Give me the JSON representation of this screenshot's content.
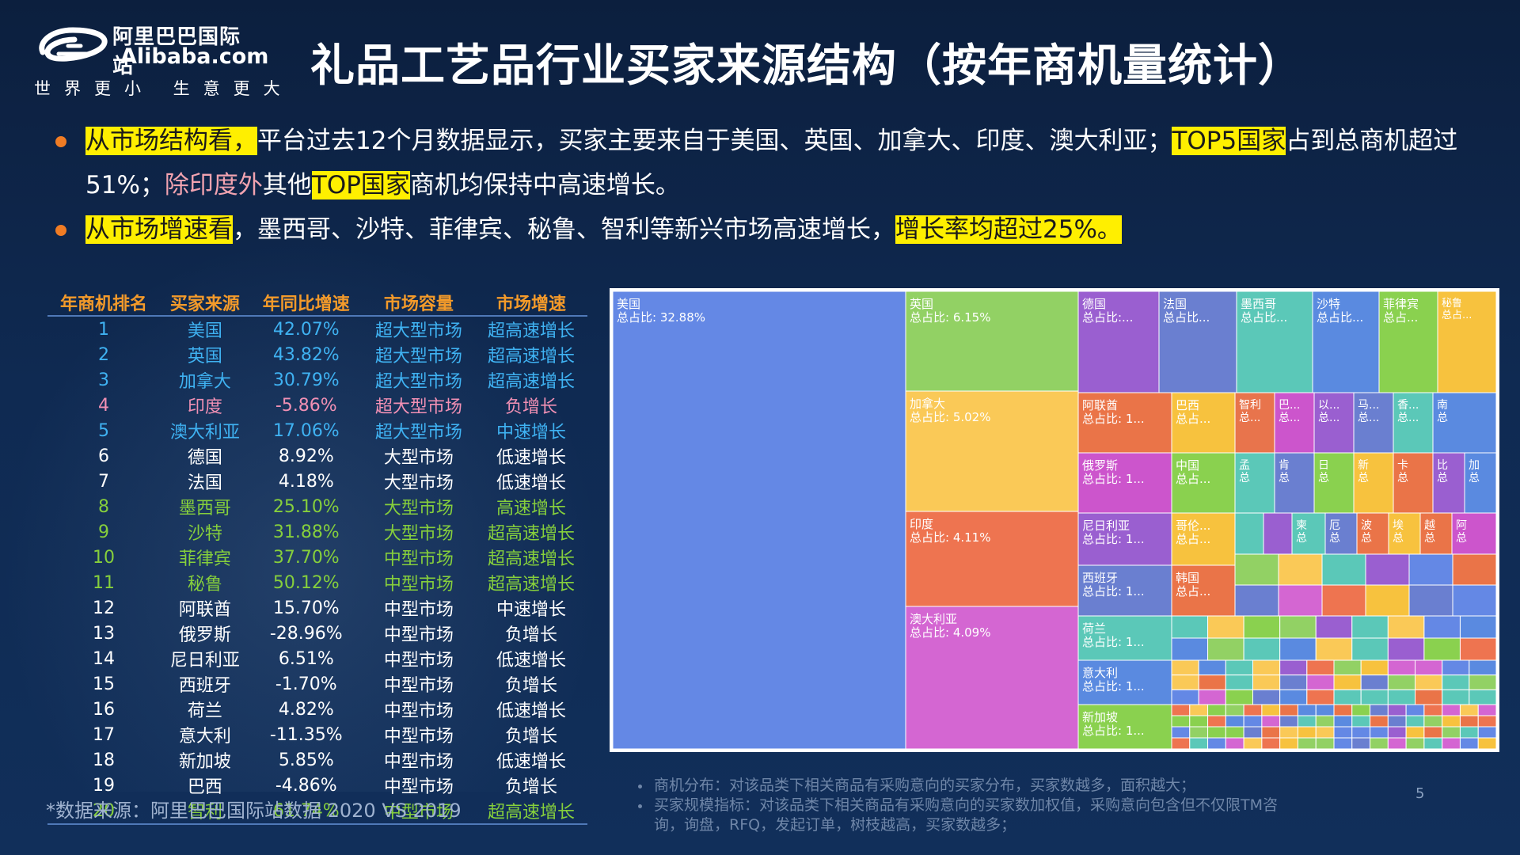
{
  "logo": {
    "cn": "阿里巴巴国际站",
    "en": "Alibaba.com",
    "slogan": "世界更小 生意更大"
  },
  "title": "礼品工艺品行业买家来源结构（按年商机量统计）",
  "bullets": [
    {
      "parts": [
        {
          "text": "从市场结构看，",
          "style": "highlight"
        },
        {
          "text": "平台过去12个月数据显示，买家主要来自于美国、英国、加拿大、印度、澳大利亚；",
          "style": "normal"
        },
        {
          "text": "TOP5国家",
          "style": "highlight"
        },
        {
          "text": "占到总商机超过51%；",
          "style": "normal"
        },
        {
          "text": "除印度外",
          "style": "pink"
        },
        {
          "text": "其他",
          "style": "normal"
        },
        {
          "text": "TOP国家",
          "style": "highlight"
        },
        {
          "text": "商机均保持中高速增长。",
          "style": "normal"
        }
      ]
    },
    {
      "parts": [
        {
          "text": "从市场增速看",
          "style": "highlight"
        },
        {
          "text": "，墨西哥、沙特、菲律宾、秘鲁、智利等新兴市场高速增长，",
          "style": "normal"
        },
        {
          "text": "增长率均超过25%。",
          "style": "highlight"
        }
      ]
    }
  ],
  "colors": {
    "blue": "#3fb2f2",
    "pink": "#f190b4",
    "white": "#ffffff",
    "green": "#86cf3c",
    "header": "#f39a2a",
    "highlight": "#ffef00"
  },
  "table": {
    "headers": [
      "年商机排名",
      "买家来源",
      "年同比增速",
      "市场容量",
      "市场增速"
    ],
    "rows": [
      {
        "rank": "1",
        "country": "美国",
        "growth": "42.07%",
        "capacity": "超大型市场",
        "speed": "超高速增长",
        "color": "blue"
      },
      {
        "rank": "2",
        "country": "英国",
        "growth": "43.82%",
        "capacity": "超大型市场",
        "speed": "超高速增长",
        "color": "blue"
      },
      {
        "rank": "3",
        "country": "加拿大",
        "growth": "30.79%",
        "capacity": "超大型市场",
        "speed": "超高速增长",
        "color": "blue"
      },
      {
        "rank": "4",
        "country": "印度",
        "growth": "-5.86%",
        "capacity": "超大型市场",
        "speed": "负增长",
        "color": "pink"
      },
      {
        "rank": "5",
        "country": "澳大利亚",
        "growth": "17.06%",
        "capacity": "超大型市场",
        "speed": "中速增长",
        "color": "blue"
      },
      {
        "rank": "6",
        "country": "德国",
        "growth": "8.92%",
        "capacity": "大型市场",
        "speed": "低速增长",
        "color": "white"
      },
      {
        "rank": "7",
        "country": "法国",
        "growth": "4.18%",
        "capacity": "大型市场",
        "speed": "低速增长",
        "color": "white"
      },
      {
        "rank": "8",
        "country": "墨西哥",
        "growth": "25.10%",
        "capacity": "大型市场",
        "speed": "高速增长",
        "color": "green"
      },
      {
        "rank": "9",
        "country": "沙特",
        "growth": "31.88%",
        "capacity": "大型市场",
        "speed": "超高速增长",
        "color": "green"
      },
      {
        "rank": "10",
        "country": "菲律宾",
        "growth": "37.70%",
        "capacity": "中型市场",
        "speed": "超高速增长",
        "color": "green"
      },
      {
        "rank": "11",
        "country": "秘鲁",
        "growth": "50.12%",
        "capacity": "中型市场",
        "speed": "超高速增长",
        "color": "green"
      },
      {
        "rank": "12",
        "country": "阿联酋",
        "growth": "15.70%",
        "capacity": "中型市场",
        "speed": "中速增长",
        "color": "white"
      },
      {
        "rank": "13",
        "country": "俄罗斯",
        "growth": "-28.96%",
        "capacity": "中型市场",
        "speed": "负增长",
        "color": "white"
      },
      {
        "rank": "14",
        "country": "尼日利亚",
        "growth": "6.51%",
        "capacity": "中型市场",
        "speed": "低速增长",
        "color": "white"
      },
      {
        "rank": "15",
        "country": "西班牙",
        "growth": "-1.70%",
        "capacity": "中型市场",
        "speed": "负增长",
        "color": "white"
      },
      {
        "rank": "16",
        "country": "荷兰",
        "growth": "4.82%",
        "capacity": "中型市场",
        "speed": "低速增长",
        "color": "white"
      },
      {
        "rank": "17",
        "country": "意大利",
        "growth": "-11.35%",
        "capacity": "中型市场",
        "speed": "负增长",
        "color": "white"
      },
      {
        "rank": "18",
        "country": "新加坡",
        "growth": "5.85%",
        "capacity": "中型市场",
        "speed": "低速增长",
        "color": "white"
      },
      {
        "rank": "19",
        "country": "巴西",
        "growth": "-4.86%",
        "capacity": "中型市场",
        "speed": "负增长",
        "color": "white"
      },
      {
        "rank": "20",
        "country": "智利",
        "growth": "61.74%",
        "capacity": "中型市场",
        "speed": "超高速增长",
        "color": "green"
      }
    ]
  },
  "chart_data": {
    "type": "treemap",
    "items": [
      {
        "name": "美国",
        "label": "美国\n总占比: 32.88%",
        "value": 32.88,
        "color": "#6488e5"
      },
      {
        "name": "英国",
        "label": "英国\n总占比: 6.15%",
        "value": 6.15,
        "color": "#92d164"
      },
      {
        "name": "加拿大",
        "label": "加拿大\n总占比: 5.02%",
        "value": 5.02,
        "color": "#fac957"
      },
      {
        "name": "印度",
        "label": "印度\n总占比: 4.11%",
        "value": 4.11,
        "color": "#ee7450"
      },
      {
        "name": "澳大利亚",
        "label": "澳大利亚\n总占比: 4.09%",
        "value": 4.09,
        "color": "#d466d2"
      },
      {
        "name": "德国",
        "label": "德国\n总占比:...",
        "color": "#9a5fd0"
      },
      {
        "name": "法国",
        "label": "法国\n总占比...",
        "color": "#6a7fd0"
      },
      {
        "name": "墨西哥",
        "label": "墨西哥\n总占比...",
        "color": "#5bc8b8"
      },
      {
        "name": "沙特",
        "label": "沙特\n总占比...",
        "color": "#5a8ae0"
      },
      {
        "name": "菲律宾",
        "label": "菲律宾\n总占...",
        "color": "#8ad14f"
      },
      {
        "name": "秘鲁",
        "label": "秘鲁\n总占...",
        "color": "#f7c23e"
      },
      {
        "name": "阿联酋",
        "label": "阿联酋\n总占比: 1...",
        "color": "#ea7448"
      },
      {
        "name": "巴西",
        "label": "巴西\n总占...",
        "color": "#f7c23e"
      },
      {
        "name": "智利",
        "label": "智利\n总...",
        "color": "#e8744c"
      },
      {
        "name": "巴",
        "label": "巴...\n总...",
        "color": "#cc55cc"
      },
      {
        "name": "以",
        "label": "以...\n总...",
        "color": "#9a5fd0"
      },
      {
        "name": "马",
        "label": "马...\n总...",
        "color": "#6a7fd0"
      },
      {
        "name": "香",
        "label": "香...\n总...",
        "color": "#5bc8b8"
      },
      {
        "name": "南",
        "label": "南\n总",
        "color": "#5a8ae0"
      },
      {
        "name": "俄罗斯",
        "label": "俄罗斯\n总占比: 1...",
        "color": "#cc55cc"
      },
      {
        "name": "中国",
        "label": "中国\n总占...",
        "color": "#8ad14f"
      },
      {
        "name": "孟",
        "label": "孟\n总",
        "color": "#5bc8b8"
      },
      {
        "name": "肯",
        "label": "肯\n总",
        "color": "#6a7fd0"
      },
      {
        "name": "日",
        "label": "日\n总",
        "color": "#8ad14f"
      },
      {
        "name": "新",
        "label": "新\n总",
        "color": "#f7c23e"
      },
      {
        "name": "卡",
        "label": "卡\n总",
        "color": "#ea7448"
      },
      {
        "name": "比",
        "label": "比\n总",
        "color": "#9a5fd0"
      },
      {
        "name": "加",
        "label": "加\n总",
        "color": "#5a8ae0"
      },
      {
        "name": "尼日利亚",
        "label": "尼日利亚\n总占比: 1...",
        "color": "#9a5fd0"
      },
      {
        "name": "哥伦",
        "label": "哥伦...\n总占...",
        "color": "#f7c23e"
      },
      {
        "name": "柬",
        "label": "柬\n总",
        "color": "#5bc8b8"
      },
      {
        "name": "厄",
        "label": "厄\n总",
        "color": "#6a7fd0"
      },
      {
        "name": "波",
        "label": "波\n总",
        "color": "#ea7448"
      },
      {
        "name": "埃",
        "label": "埃\n总",
        "color": "#f7c23e"
      },
      {
        "name": "越",
        "label": "越\n总",
        "color": "#ea7448"
      },
      {
        "name": "阿",
        "label": "阿\n总",
        "color": "#cc55cc"
      },
      {
        "name": "西班牙",
        "label": "西班牙\n总占比: 1...",
        "color": "#6a7fd0"
      },
      {
        "name": "韩国",
        "label": "韩国\n总占...",
        "color": "#ea7448"
      },
      {
        "name": "荷兰",
        "label": "荷兰\n总占比: 1...",
        "color": "#5bc8b8"
      },
      {
        "name": "意大利",
        "label": "意大利\n总占比: 1...",
        "color": "#5a8ae0"
      },
      {
        "name": "新加坡",
        "label": "新加坡\n总占比: 1...",
        "color": "#8ad14f"
      }
    ]
  },
  "footer": {
    "source": "*数据来源：阿里巴巴国际站数据 2020 VS 2019",
    "notes": [
      "商机分布：对该品类下相关商品有采购意向的买家分布，买家数越多，面积越大；",
      "买家规模指标：对该品类下相关商品有采购意向的买家数加权值，采购意向包含但不仅限TM咨询，询盘，RFQ，发起订单，树枝越高，买家数越多；"
    ],
    "page_number": "5"
  }
}
